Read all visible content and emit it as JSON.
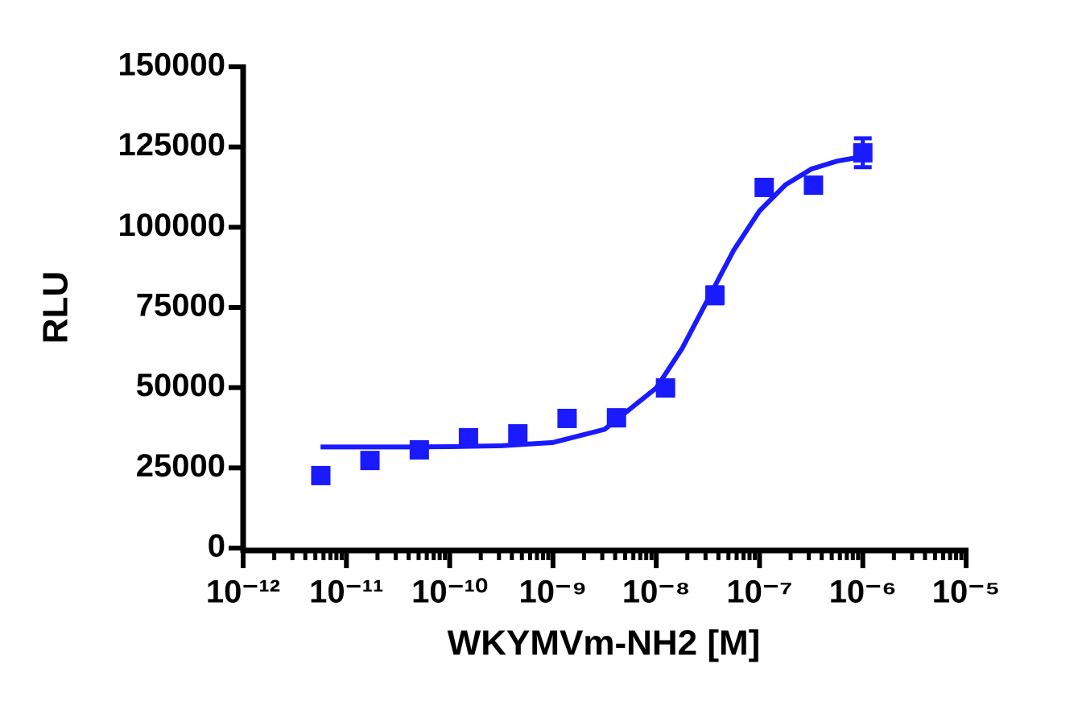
{
  "chart_data": {
    "type": "scatter",
    "xlabel": "WKYMVm-NH2 [M]",
    "ylabel": "RLU",
    "xscale": "log",
    "grid": false,
    "xlim": [
      1e-12,
      1e-05
    ],
    "xticks": [
      {
        "value": 1e-12,
        "label": "10⁻¹²"
      },
      {
        "value": 1e-11,
        "label": "10⁻¹¹"
      },
      {
        "value": 1e-10,
        "label": "10⁻¹⁰"
      },
      {
        "value": 1e-09,
        "label": "10⁻⁹"
      },
      {
        "value": 1e-08,
        "label": "10⁻⁸"
      },
      {
        "value": 1e-07,
        "label": "10⁻⁷"
      },
      {
        "value": 1e-06,
        "label": "10⁻⁶"
      },
      {
        "value": 1e-05,
        "label": "10⁻⁵"
      }
    ],
    "ylim": [
      0,
      150000
    ],
    "yticks": [
      0,
      25000,
      50000,
      75000,
      100000,
      125000,
      150000
    ],
    "series": [
      {
        "name": "data",
        "color": "#1a1aff",
        "x": [
          5.65e-12,
          1.69e-11,
          5.08e-11,
          1.52e-10,
          4.57e-10,
          1.37e-09,
          4.12e-09,
          1.23e-08,
          3.7e-08,
          1.11e-07,
          3.33e-07,
          1e-06
        ],
        "values": [
          22600,
          27300,
          30600,
          34400,
          35600,
          40400,
          40600,
          49900,
          78800,
          112400,
          113100,
          123200
        ],
        "errors": [
          null,
          null,
          null,
          null,
          null,
          null,
          null,
          null,
          2500,
          null,
          null,
          4500
        ]
      },
      {
        "name": "fit",
        "color": "#1a1aff",
        "x": [
          5.62e-12,
          1e-11,
          3.16e-11,
          1e-10,
          3.16e-10,
          1e-09,
          3.16e-09,
          1e-08,
          1.78e-08,
          3.16e-08,
          5.62e-08,
          1e-07,
          1.78e-07,
          3.16e-07,
          5.62e-07,
          1e-06
        ],
        "values": [
          31500,
          31500,
          31500,
          31600,
          31900,
          32900,
          37000,
          49900,
          62200,
          77500,
          92800,
          105100,
          113200,
          118100,
          120600,
          122000
        ]
      }
    ]
  }
}
